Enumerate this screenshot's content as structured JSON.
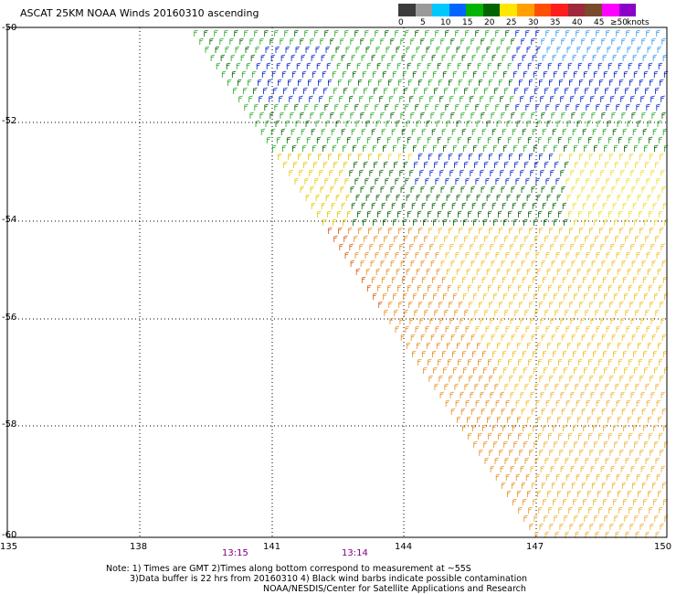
{
  "title": "ASCAT 25KM NOAA Winds 20160310 ascending",
  "legend": {
    "colors": [
      "#3c3c3c",
      "#9a9a9a",
      "#00c8ff",
      "#0064ff",
      "#00b400",
      "#006400",
      "#ffe600",
      "#ffa000",
      "#ff5000",
      "#ff1e1e",
      "#a0283c",
      "#7a4a2a",
      "#ff00ff",
      "#8c00c8"
    ],
    "labels": [
      "0",
      "5",
      "10",
      "15",
      "20",
      "25",
      "30",
      "35",
      "40",
      "45",
      "≥50",
      "knots"
    ]
  },
  "axes": {
    "lat_labels": [
      "-50",
      "-52",
      "-54",
      "-56",
      "-58",
      "-60"
    ],
    "lon_labels": [
      "135",
      "138",
      "141",
      "144",
      "147",
      "150"
    ]
  },
  "times": [
    "13:15",
    "13:14"
  ],
  "notes": {
    "line1": "Note: 1) Times are GMT 2)Times along bottom correspond to measurement at ~55S",
    "line2": "3)Data buffer is 22 hrs from 20160310 4) Black wind barbs indicate possible contamination",
    "line3": "NOAA/NESDIS/Center for Satellite Applications and Research"
  }
}
